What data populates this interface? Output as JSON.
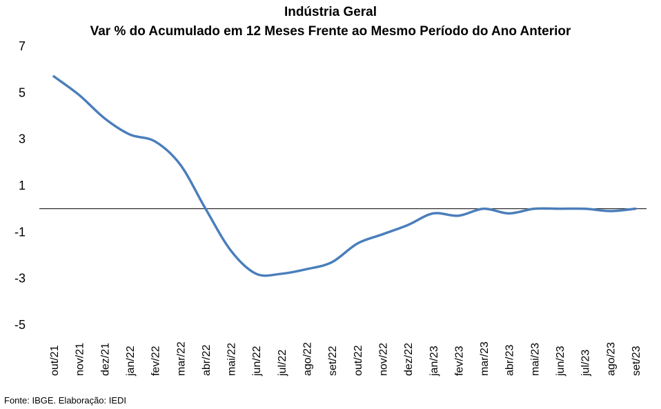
{
  "title_line1": "Indústria Geral",
  "title_line2": "Var % do Acumulado em 12 Meses Frente ao Mesmo Período do Ano Anterior",
  "source": "Fonte: IBGE. Elaboração: IEDI",
  "colors": {
    "line": "#4a7ebb",
    "zero_line": "#000000"
  },
  "chart_data": {
    "type": "line",
    "title": "Indústria Geral",
    "subtitle": "Var % do Acumulado em 12 Meses Frente ao Mesmo Período do Ano Anterior",
    "xlabel": "",
    "ylabel": "",
    "ylim": [
      -5,
      7
    ],
    "yticks": [
      7,
      5,
      3,
      1,
      -1,
      -3,
      -5
    ],
    "grid": false,
    "legend": "none",
    "categories": [
      "out/21",
      "nov/21",
      "dez/21",
      "jan/22",
      "fev/22",
      "mar/22",
      "abr/22",
      "mai/22",
      "jun/22",
      "jul/22",
      "ago/22",
      "set/22",
      "out/22",
      "nov/22",
      "dez/22",
      "jan/23",
      "fev/23",
      "mar/23",
      "abr/23",
      "mai/23",
      "jun/23",
      "jul/23",
      "ago/23",
      "set/23"
    ],
    "series": [
      {
        "values": [
          5.7,
          4.9,
          3.9,
          3.2,
          2.9,
          1.9,
          0.0,
          -1.8,
          -2.8,
          -2.8,
          -2.6,
          -2.3,
          -1.5,
          -1.1,
          -0.7,
          -0.2,
          -0.3,
          0.0,
          -0.2,
          0.0,
          0.0,
          0.0,
          -0.1,
          0.0
        ]
      }
    ]
  }
}
